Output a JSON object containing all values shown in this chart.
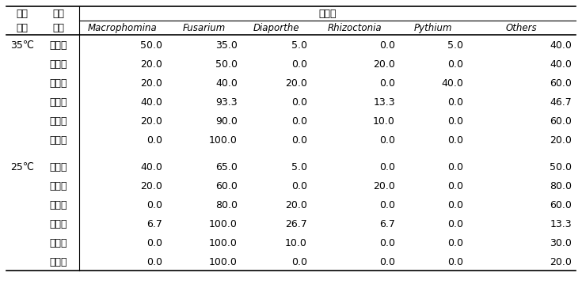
{
  "header_top": [
    "분리",
    "분리",
    "병원균"
  ],
  "header_bot": [
    "온도",
    "지역",
    "Macrophomina",
    "Fusarium",
    "Diaporthe",
    "Rhizoctonia",
    "Pythium",
    "Others"
  ],
  "rows": [
    [
      "35℃",
      "구좌읍",
      "50.0",
      "35.0",
      "5.0",
      "0.0",
      "5.0",
      "40.0"
    ],
    [
      "",
      "조천읍",
      "20.0",
      "50.0",
      "0.0",
      "20.0",
      "0.0",
      "40.0"
    ],
    [
      "",
      "회천동",
      "20.0",
      "40.0",
      "20.0",
      "0.0",
      "40.0",
      "60.0"
    ],
    [
      "",
      "애월읍",
      "40.0",
      "93.3",
      "0.0",
      "13.3",
      "0.0",
      "46.7"
    ],
    [
      "",
      "한경면",
      "20.0",
      "90.0",
      "0.0",
      "10.0",
      "0.0",
      "60.0"
    ],
    [
      "",
      "안덕면",
      "0.0",
      "100.0",
      "0.0",
      "0.0",
      "0.0",
      "20.0"
    ],
    [
      "25℃",
      "구좌읍",
      "40.0",
      "65.0",
      "5.0",
      "0.0",
      "0.0",
      "50.0"
    ],
    [
      "",
      "조천읍",
      "20.0",
      "60.0",
      "0.0",
      "20.0",
      "0.0",
      "80.0"
    ],
    [
      "",
      "회천동",
      "0.0",
      "80.0",
      "20.0",
      "0.0",
      "0.0",
      "60.0"
    ],
    [
      "",
      "애월읍",
      "6.7",
      "100.0",
      "26.7",
      "6.7",
      "0.0",
      "13.3"
    ],
    [
      "",
      "한경면",
      "0.0",
      "100.0",
      "10.0",
      "0.0",
      "0.0",
      "30.0"
    ],
    [
      "",
      "안덕면",
      "0.0",
      "100.0",
      "0.0",
      "0.0",
      "0.0",
      "20.0"
    ]
  ],
  "bg_color": "#ffffff",
  "text_color": "#000000",
  "line_color": "#000000",
  "fs_korean": 9.0,
  "fs_data": 9.0,
  "fs_italic": 8.5
}
